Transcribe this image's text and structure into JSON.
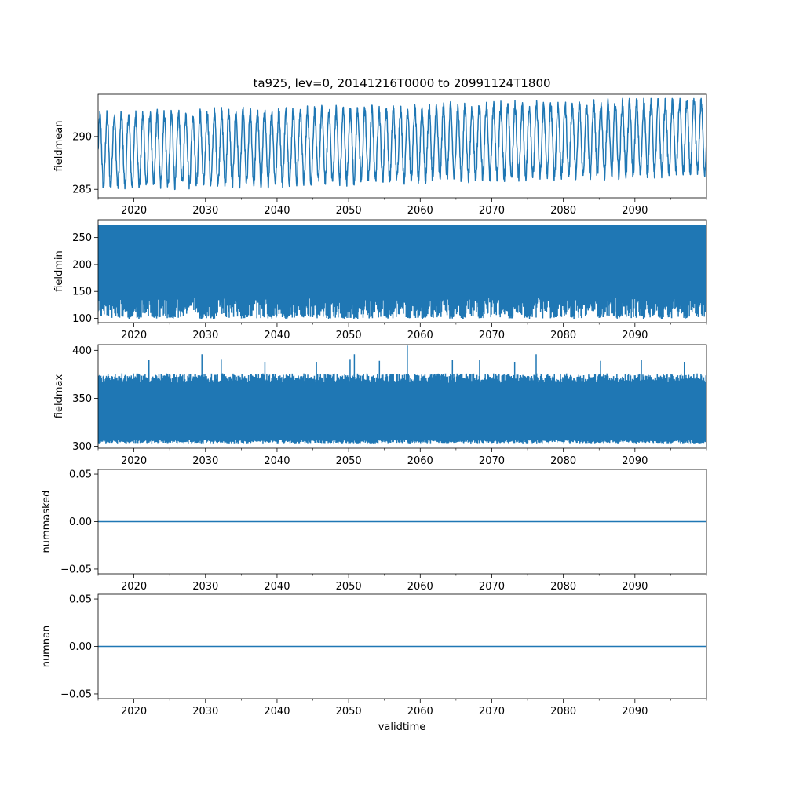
{
  "title": "ta925, lev=0, 20141216T0000 to 20991124T1800",
  "xlabel": "validtime",
  "line_color": "#1f77b4",
  "chart_data": [
    {
      "type": "line",
      "ylabel": "fieldmean",
      "xlim": [
        2015.0,
        2100.0
      ],
      "ylim": [
        284.2,
        294.0
      ],
      "xticks": [
        "2020",
        "2030",
        "2040",
        "2050",
        "2060",
        "2070",
        "2080",
        "2090"
      ],
      "yticks": [
        "285",
        "290"
      ],
      "series": [
        {
          "seasonal_cycle": {
            "period_years": 1,
            "mean_start": 288.6,
            "mean_end": 290.0,
            "amplitude": 3.3,
            "typical_min_start": 285.3,
            "typical_min_end": 286.7,
            "typical_max_start": 291.9,
            "typical_max_end": 293.3
          },
          "extremes": {
            "min": 284.8,
            "max": 293.6
          }
        }
      ]
    },
    {
      "type": "line",
      "ylabel": "fieldmin",
      "xlim": [
        2015.0,
        2100.0
      ],
      "ylim": [
        92,
        283
      ],
      "xticks": [
        "2020",
        "2030",
        "2040",
        "2050",
        "2060",
        "2070",
        "2080",
        "2090"
      ],
      "yticks": [
        "100",
        "150",
        "200",
        "250"
      ],
      "series": [
        {
          "band": {
            "upper": 273,
            "typical_low": 140,
            "min": 99
          },
          "dips_to_min": [
            2019.5,
            2020.7,
            2023.0,
            2025.5,
            2029.4,
            2031.0,
            2035.2,
            2039.0,
            2041.3,
            2043.7,
            2047.2,
            2049.5,
            2051.0,
            2055.3,
            2058.3,
            2060.5,
            2064.4,
            2066.0,
            2068.4,
            2072.6,
            2075.0,
            2078.9,
            2081.3,
            2085.0,
            2087.7,
            2091.1,
            2093.7,
            2097.1
          ]
        }
      ]
    },
    {
      "type": "line",
      "ylabel": "fieldmax",
      "xlim": [
        2015.0,
        2100.0
      ],
      "ylim": [
        298,
        406
      ],
      "xticks": [
        "2020",
        "2030",
        "2040",
        "2050",
        "2060",
        "2070",
        "2080",
        "2090"
      ],
      "yticks": [
        "300",
        "350",
        "400"
      ],
      "series": [
        {
          "band": {
            "lower": 307,
            "typical_high": 372,
            "min": 303
          },
          "peaks": [
            {
              "x": 2015.3,
              "y": 373
            },
            {
              "x": 2022.1,
              "y": 390
            },
            {
              "x": 2029.5,
              "y": 396
            },
            {
              "x": 2032.2,
              "y": 391
            },
            {
              "x": 2038.3,
              "y": 388
            },
            {
              "x": 2045.5,
              "y": 388
            },
            {
              "x": 2050.2,
              "y": 391
            },
            {
              "x": 2050.8,
              "y": 396
            },
            {
              "x": 2054.3,
              "y": 389
            },
            {
              "x": 2058.2,
              "y": 405
            },
            {
              "x": 2064.5,
              "y": 390
            },
            {
              "x": 2068.3,
              "y": 390
            },
            {
              "x": 2073.2,
              "y": 388
            },
            {
              "x": 2076.2,
              "y": 396
            },
            {
              "x": 2085.2,
              "y": 389
            },
            {
              "x": 2090.9,
              "y": 390
            },
            {
              "x": 2096.9,
              "y": 388
            }
          ]
        }
      ]
    },
    {
      "type": "line",
      "ylabel": "nummasked",
      "xlim": [
        2015.0,
        2100.0
      ],
      "ylim": [
        -0.055,
        0.055
      ],
      "xticks": [
        "2020",
        "2030",
        "2040",
        "2050",
        "2060",
        "2070",
        "2080",
        "2090"
      ],
      "yticks": [
        "−0.05",
        "0.00",
        "0.05"
      ],
      "series": [
        {
          "constant": 0.0
        }
      ]
    },
    {
      "type": "line",
      "ylabel": "numnan",
      "xlim": [
        2015.0,
        2100.0
      ],
      "ylim": [
        -0.055,
        0.055
      ],
      "xticks": [
        "2020",
        "2030",
        "2040",
        "2050",
        "2060",
        "2070",
        "2080",
        "2090"
      ],
      "yticks": [
        "−0.05",
        "0.00",
        "0.05"
      ],
      "series": [
        {
          "constant": 0.0
        }
      ]
    }
  ]
}
